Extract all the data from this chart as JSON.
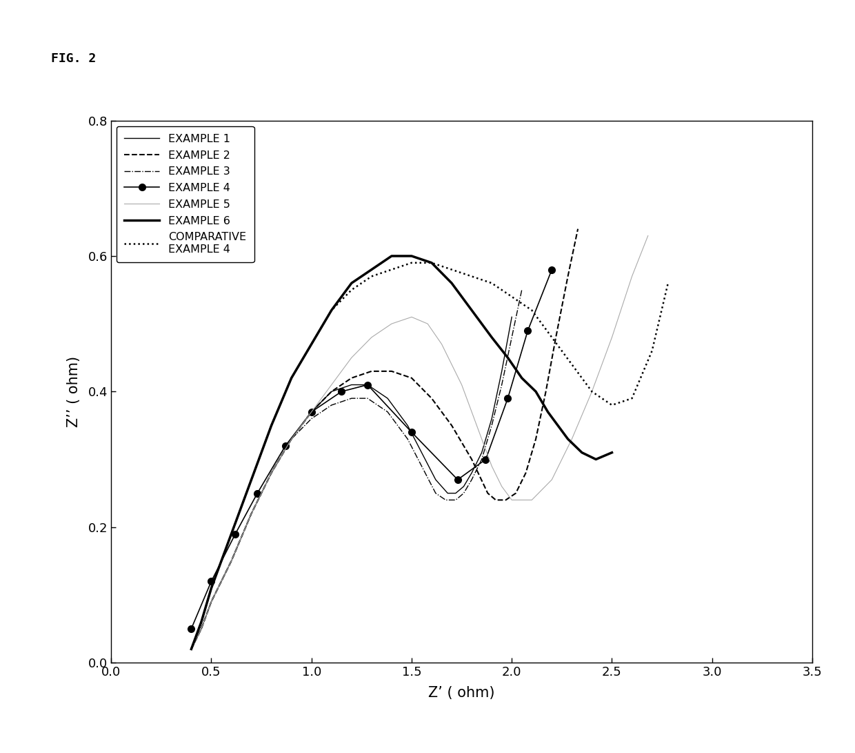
{
  "title": "FIG. 2",
  "xlabel": "Z’ ( ohm)",
  "ylabel": "Z’’ ( ohm)",
  "xlim": [
    0.0,
    3.5
  ],
  "ylim": [
    0.0,
    0.8
  ],
  "xticks": [
    0.0,
    0.5,
    1.0,
    1.5,
    2.0,
    2.5,
    3.0,
    3.5
  ],
  "yticks": [
    0.0,
    0.2,
    0.4,
    0.6,
    0.8
  ],
  "background": "#ffffff",
  "series": [
    {
      "name": "EXAMPLE 1",
      "color": "#000000",
      "linewidth": 1.0,
      "linestyle": "-",
      "marker": null,
      "markersize": 0,
      "x": [
        0.4,
        0.45,
        0.5,
        0.6,
        0.7,
        0.8,
        0.9,
        1.0,
        1.1,
        1.2,
        1.28,
        1.38,
        1.48,
        1.55,
        1.62,
        1.68,
        1.72,
        1.76,
        1.8,
        1.85,
        1.9,
        1.95,
        2.0
      ],
      "y": [
        0.02,
        0.05,
        0.09,
        0.15,
        0.22,
        0.28,
        0.33,
        0.37,
        0.4,
        0.41,
        0.41,
        0.39,
        0.35,
        0.31,
        0.27,
        0.25,
        0.25,
        0.26,
        0.28,
        0.31,
        0.36,
        0.43,
        0.51
      ]
    },
    {
      "name": "EXAMPLE 2",
      "color": "#000000",
      "linewidth": 1.5,
      "linestyle": "--",
      "marker": null,
      "markersize": 0,
      "x": [
        0.4,
        0.45,
        0.5,
        0.6,
        0.7,
        0.8,
        0.9,
        1.0,
        1.1,
        1.2,
        1.3,
        1.4,
        1.5,
        1.6,
        1.7,
        1.8,
        1.88,
        1.92,
        1.97,
        2.02,
        2.07,
        2.12,
        2.17,
        2.22,
        2.28,
        2.33
      ],
      "y": [
        0.02,
        0.05,
        0.09,
        0.15,
        0.22,
        0.28,
        0.33,
        0.37,
        0.4,
        0.42,
        0.43,
        0.43,
        0.42,
        0.39,
        0.35,
        0.3,
        0.25,
        0.24,
        0.24,
        0.25,
        0.28,
        0.33,
        0.4,
        0.48,
        0.57,
        0.64
      ]
    },
    {
      "name": "EXAMPLE 3",
      "color": "#000000",
      "linewidth": 1.0,
      "linestyle": "-.",
      "marker": null,
      "markersize": 0,
      "x": [
        0.4,
        0.45,
        0.5,
        0.6,
        0.7,
        0.8,
        0.9,
        1.0,
        1.1,
        1.2,
        1.28,
        1.38,
        1.48,
        1.55,
        1.62,
        1.67,
        1.72,
        1.76,
        1.8,
        1.85,
        1.9,
        1.95,
        2.0,
        2.05
      ],
      "y": [
        0.02,
        0.05,
        0.09,
        0.15,
        0.22,
        0.28,
        0.33,
        0.36,
        0.38,
        0.39,
        0.39,
        0.37,
        0.33,
        0.29,
        0.25,
        0.24,
        0.24,
        0.25,
        0.27,
        0.3,
        0.35,
        0.41,
        0.48,
        0.55
      ]
    },
    {
      "name": "EXAMPLE 4",
      "color": "#000000",
      "linewidth": 1.2,
      "linestyle": "-",
      "marker": "o",
      "markersize": 7,
      "x": [
        0.4,
        0.5,
        0.62,
        0.73,
        0.87,
        1.0,
        1.15,
        1.28,
        1.5,
        1.73,
        1.87,
        1.98,
        2.08,
        2.2
      ],
      "y": [
        0.05,
        0.12,
        0.19,
        0.25,
        0.32,
        0.37,
        0.4,
        0.41,
        0.34,
        0.27,
        0.3,
        0.39,
        0.49,
        0.58
      ]
    },
    {
      "name": "EXAMPLE 5",
      "color": "#aaaaaa",
      "linewidth": 0.8,
      "linestyle": "-",
      "marker": null,
      "markersize": 0,
      "x": [
        0.4,
        0.45,
        0.5,
        0.6,
        0.7,
        0.8,
        0.9,
        1.0,
        1.1,
        1.2,
        1.3,
        1.4,
        1.5,
        1.58,
        1.65,
        1.7,
        1.75,
        1.8,
        1.85,
        1.9,
        1.95,
        2.0,
        2.1,
        2.2,
        2.3,
        2.4,
        2.5,
        2.6,
        2.68
      ],
      "y": [
        0.02,
        0.05,
        0.09,
        0.15,
        0.22,
        0.28,
        0.33,
        0.37,
        0.41,
        0.45,
        0.48,
        0.5,
        0.51,
        0.5,
        0.47,
        0.44,
        0.41,
        0.37,
        0.33,
        0.29,
        0.26,
        0.24,
        0.24,
        0.27,
        0.33,
        0.4,
        0.48,
        0.57,
        0.63
      ]
    },
    {
      "name": "EXAMPLE 6",
      "color": "#000000",
      "linewidth": 2.5,
      "linestyle": "-",
      "marker": null,
      "markersize": 0,
      "x": [
        0.4,
        0.45,
        0.5,
        0.6,
        0.7,
        0.8,
        0.9,
        1.0,
        1.1,
        1.2,
        1.3,
        1.4,
        1.5,
        1.6,
        1.7,
        1.8,
        1.9,
        1.98,
        2.05,
        2.12,
        2.18,
        2.23,
        2.28,
        2.35,
        2.42,
        2.5
      ],
      "y": [
        0.02,
        0.06,
        0.11,
        0.19,
        0.27,
        0.35,
        0.42,
        0.47,
        0.52,
        0.56,
        0.58,
        0.6,
        0.6,
        0.59,
        0.56,
        0.52,
        0.48,
        0.45,
        0.42,
        0.4,
        0.37,
        0.35,
        0.33,
        0.31,
        0.3,
        0.31
      ]
    },
    {
      "name": "COMPARATIVE\nEXAMPLE 4",
      "color": "#000000",
      "linewidth": 1.8,
      "linestyle": ":",
      "marker": null,
      "markersize": 0,
      "x": [
        0.4,
        0.45,
        0.5,
        0.6,
        0.7,
        0.8,
        0.9,
        1.0,
        1.1,
        1.2,
        1.3,
        1.4,
        1.5,
        1.6,
        1.7,
        1.8,
        1.9,
        1.95,
        2.0,
        2.05,
        2.1,
        2.15,
        2.2,
        2.25,
        2.3,
        2.4,
        2.5,
        2.6,
        2.7,
        2.78
      ],
      "y": [
        0.02,
        0.06,
        0.11,
        0.19,
        0.27,
        0.35,
        0.42,
        0.47,
        0.52,
        0.55,
        0.57,
        0.58,
        0.59,
        0.59,
        0.58,
        0.57,
        0.56,
        0.55,
        0.54,
        0.53,
        0.52,
        0.5,
        0.48,
        0.46,
        0.44,
        0.4,
        0.38,
        0.39,
        0.46,
        0.56
      ]
    }
  ],
  "legend_entries": [
    {
      "label": "EXAMPLE 1",
      "linestyle": "-",
      "linewidth": 1.0,
      "color": "#000000",
      "marker": null,
      "markersize": 0
    },
    {
      "label": "EXAMPLE 2",
      "linestyle": "--",
      "linewidth": 1.5,
      "color": "#000000",
      "marker": null,
      "markersize": 0
    },
    {
      "label": "EXAMPLE 3",
      "linestyle": "-.",
      "linewidth": 1.0,
      "color": "#000000",
      "marker": null,
      "markersize": 0
    },
    {
      "label": "EXAMPLE 4",
      "linestyle": "-",
      "linewidth": 1.2,
      "color": "#000000",
      "marker": "o",
      "markersize": 7
    },
    {
      "label": "EXAMPLE 5",
      "linestyle": "-",
      "linewidth": 0.8,
      "color": "#aaaaaa",
      "marker": null,
      "markersize": 0
    },
    {
      "label": "EXAMPLE 6",
      "linestyle": "-",
      "linewidth": 2.5,
      "color": "#000000",
      "marker": null,
      "markersize": 0
    },
    {
      "label": "COMPARATIVE\nEXAMPLE 4",
      "linestyle": ":",
      "linewidth": 1.8,
      "color": "#000000",
      "marker": null,
      "markersize": 0
    }
  ]
}
